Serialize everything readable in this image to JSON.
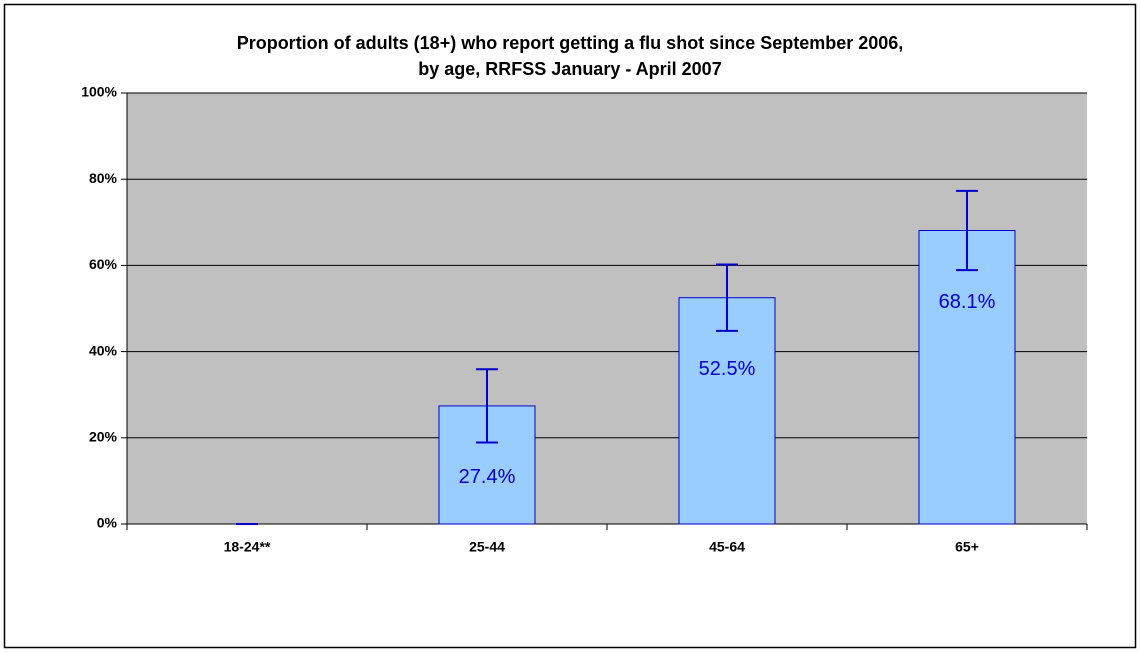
{
  "chart_data": {
    "type": "bar",
    "title": [
      "Proportion of adults (18+) who report getting a flu shot since September 2006,",
      "by age, RRFSS January - April 2007"
    ],
    "categories": [
      "18-24**",
      "25-44",
      "45-64",
      "65+"
    ],
    "values": [
      0,
      27.4,
      52.5,
      68.1
    ],
    "value_labels": [
      null,
      "27.4%",
      "52.5%",
      "68.1%"
    ],
    "errors": [
      0,
      8.5,
      7.7,
      9.2
    ],
    "color": "#99ccff",
    "ylim": [
      0,
      100
    ],
    "yticks": [
      {
        "value": 0,
        "label": "0%"
      },
      {
        "value": 20,
        "label": "20%"
      },
      {
        "value": 40,
        "label": "40%"
      },
      {
        "value": 60,
        "label": "60%"
      },
      {
        "value": 80,
        "label": "80%"
      },
      {
        "value": 100,
        "label": "100%"
      }
    ],
    "grid": true
  }
}
